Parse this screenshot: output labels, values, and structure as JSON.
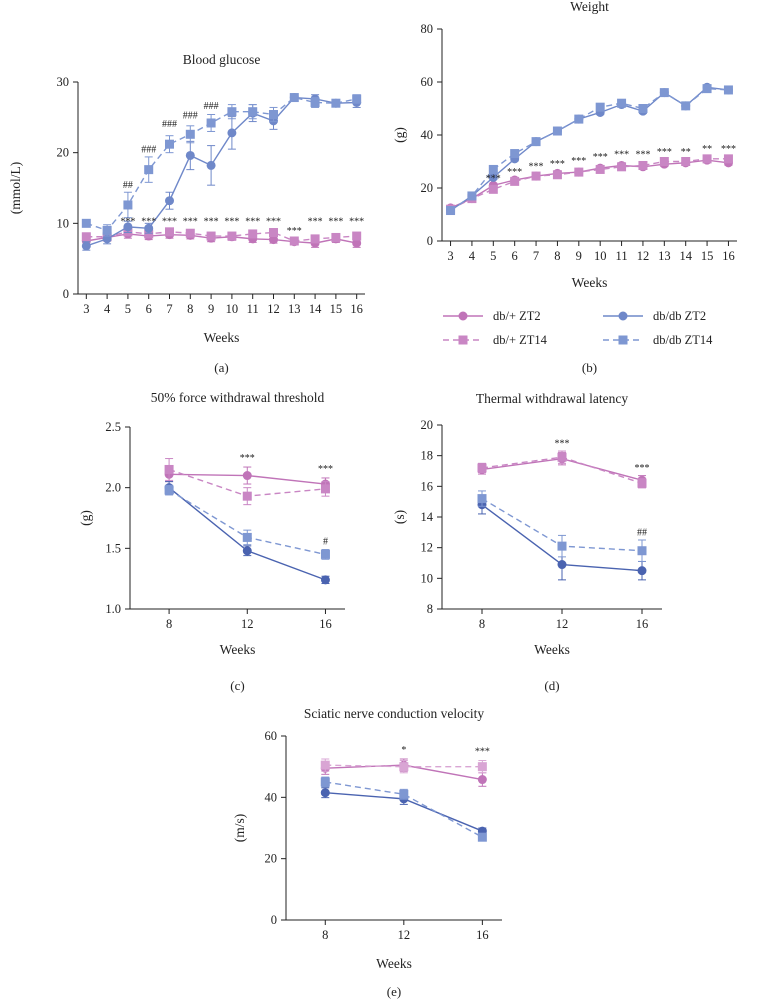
{
  "colors": {
    "dbplus_zt2": "#c074b8",
    "dbplus_zt14": "#c986c4",
    "dbdb_zt2": "#6f88c9",
    "dbdb_zt14": "#7e97d2",
    "dbdb_dark": "#4a63b0",
    "dbplus_light": "#d9a5d4"
  },
  "legend": {
    "items": [
      {
        "label": "db/+ ZT2",
        "series": "dbplus_zt2",
        "dash": false,
        "marker": "circle"
      },
      {
        "label": "db/db ZT2",
        "series": "dbdb_zt2",
        "dash": false,
        "marker": "circle"
      },
      {
        "label": "db/+ ZT14",
        "series": "dbplus_zt14",
        "dash": true,
        "marker": "square"
      },
      {
        "label": "db/db ZT14",
        "series": "dbdb_zt14",
        "dash": true,
        "marker": "square"
      }
    ]
  },
  "chart_data": [
    {
      "id": "a",
      "panel_label": "(a)",
      "type": "line",
      "title": "Blood glucose",
      "xlabel": "Weeks",
      "ylabel": "(mmol/L)",
      "x": [
        3,
        4,
        5,
        6,
        7,
        8,
        9,
        10,
        11,
        12,
        13,
        14,
        15,
        16
      ],
      "xticks": [
        "3",
        "4",
        "5",
        "6",
        "7",
        "8",
        "9",
        "10",
        "11",
        "12",
        "13",
        "14",
        "15",
        "16"
      ],
      "ylim": [
        0,
        30
      ],
      "yticks": [
        0,
        10,
        20,
        30
      ],
      "series": [
        {
          "name": "db/+ ZT2",
          "key": "dbplus_zt2",
          "dash": false,
          "marker": "circle",
          "values": [
            7.5,
            8.0,
            8.5,
            8.2,
            8.4,
            8.3,
            7.9,
            8.1,
            7.8,
            7.7,
            7.4,
            7.2,
            7.8,
            7.2
          ],
          "err": [
            0.6,
            0.5,
            0.6,
            0.5,
            0.5,
            0.5,
            0.5,
            0.5,
            0.5,
            0.5,
            0.4,
            0.6,
            0.5,
            0.6
          ]
        },
        {
          "name": "db/+ ZT14",
          "key": "dbplus_zt14",
          "dash": true,
          "marker": "square",
          "values": [
            8.1,
            8.1,
            8.8,
            8.5,
            8.8,
            8.6,
            8.2,
            8.2,
            8.5,
            8.7,
            7.5,
            7.8,
            8.0,
            8.2
          ],
          "err": [
            0.5,
            0.5,
            0.5,
            0.5,
            0.5,
            0.5,
            0.5,
            0.5,
            0.5,
            0.5,
            0.5,
            0.5,
            0.5,
            0.5
          ]
        },
        {
          "name": "db/db ZT2",
          "key": "dbdb_zt2",
          "dash": false,
          "marker": "circle",
          "values": [
            6.8,
            7.8,
            9.5,
            9.3,
            13.2,
            19.6,
            18.2,
            22.8,
            25.6,
            24.5,
            27.8,
            27.6,
            27.0,
            27.1
          ],
          "err": [
            0.6,
            0.7,
            0.8,
            0.7,
            1.2,
            2.0,
            2.8,
            2.3,
            1.2,
            1.2,
            0.4,
            0.6,
            0.5,
            0.7
          ]
        },
        {
          "name": "db/db ZT14",
          "key": "dbdb_zt14",
          "dash": true,
          "marker": "square",
          "values": [
            10.0,
            9.0,
            12.6,
            17.6,
            21.2,
            22.6,
            24.2,
            25.8,
            25.8,
            25.4,
            27.8,
            27.1,
            27.0,
            27.6
          ],
          "err": [
            0.5,
            0.8,
            1.8,
            1.8,
            1.2,
            1.2,
            1.2,
            1.0,
            1.0,
            1.0,
            0.5,
            0.7,
            0.5,
            0.6
          ]
        }
      ],
      "annotations": [
        {
          "x": 5,
          "y": 9.8,
          "text": "***"
        },
        {
          "x": 6,
          "y": 9.8,
          "text": "***"
        },
        {
          "x": 7,
          "y": 9.8,
          "text": "***"
        },
        {
          "x": 8,
          "y": 9.8,
          "text": "***"
        },
        {
          "x": 9,
          "y": 9.8,
          "text": "***"
        },
        {
          "x": 10,
          "y": 9.8,
          "text": "***"
        },
        {
          "x": 11,
          "y": 9.8,
          "text": "***"
        },
        {
          "x": 12,
          "y": 9.8,
          "text": "***"
        },
        {
          "x": 13,
          "y": 8.5,
          "text": "***"
        },
        {
          "x": 14,
          "y": 9.8,
          "text": "***"
        },
        {
          "x": 15,
          "y": 9.8,
          "text": "***"
        },
        {
          "x": 16,
          "y": 9.8,
          "text": "***"
        },
        {
          "x": 5,
          "y": 15.0,
          "text": "##"
        },
        {
          "x": 6,
          "y": 20.0,
          "text": "###"
        },
        {
          "x": 7,
          "y": 23.6,
          "text": "###"
        },
        {
          "x": 8,
          "y": 24.8,
          "text": "###"
        },
        {
          "x": 9,
          "y": 26.2,
          "text": "###"
        }
      ]
    },
    {
      "id": "b",
      "panel_label": "(b)",
      "type": "line",
      "title": "Weight",
      "xlabel": "Weeks",
      "ylabel": "(g)",
      "x": [
        3,
        4,
        5,
        6,
        7,
        8,
        9,
        10,
        11,
        12,
        13,
        14,
        15,
        16
      ],
      "xticks": [
        "3",
        "4",
        "5",
        "6",
        "7",
        "8",
        "9",
        "10",
        "11",
        "12",
        "13",
        "14",
        "15",
        "16"
      ],
      "ylim": [
        0,
        80
      ],
      "yticks": [
        0,
        20,
        40,
        60,
        80
      ],
      "series": [
        {
          "name": "db/+ ZT2",
          "key": "dbplus_zt2",
          "dash": false,
          "marker": "circle",
          "values": [
            12.5,
            16.0,
            21.0,
            23.0,
            24.5,
            25.5,
            26.0,
            27.5,
            28.5,
            28.0,
            29.0,
            29.5,
            30.5,
            29.5
          ],
          "err": [
            0.6,
            0.6,
            0.8,
            0.8,
            0.8,
            0.8,
            0.8,
            0.9,
            0.9,
            0.9,
            0.9,
            0.9,
            0.9,
            0.9
          ]
        },
        {
          "name": "db/+ ZT14",
          "key": "dbplus_zt14",
          "dash": true,
          "marker": "square",
          "values": [
            12.0,
            16.0,
            19.5,
            22.5,
            24.5,
            25.0,
            26.0,
            27.0,
            28.0,
            28.5,
            30.0,
            30.0,
            31.0,
            31.0
          ],
          "err": [
            0.6,
            0.6,
            0.8,
            0.8,
            0.8,
            0.8,
            0.8,
            0.9,
            0.9,
            0.9,
            0.9,
            0.9,
            0.9,
            0.9
          ]
        },
        {
          "name": "db/db ZT2",
          "key": "dbdb_zt2",
          "dash": false,
          "marker": "circle",
          "values": [
            11.5,
            17.0,
            24.0,
            31.0,
            37.5,
            41.5,
            46.0,
            48.5,
            51.5,
            49.0,
            56.0,
            51.0,
            58.0,
            57.0
          ],
          "err": [
            0.6,
            0.7,
            0.8,
            0.8,
            0.8,
            0.8,
            0.8,
            0.8,
            0.8,
            0.8,
            0.8,
            0.8,
            0.8,
            0.8
          ]
        },
        {
          "name": "db/db ZT14",
          "key": "dbdb_zt14",
          "dash": true,
          "marker": "square",
          "values": [
            11.5,
            17.0,
            27.0,
            33.0,
            37.5,
            41.5,
            46.0,
            50.5,
            52.0,
            50.0,
            56.0,
            51.0,
            57.5,
            57.0
          ],
          "err": [
            0.6,
            0.7,
            0.8,
            0.8,
            0.8,
            0.8,
            0.8,
            0.8,
            0.8,
            0.8,
            0.8,
            0.8,
            0.8,
            0.8
          ]
        }
      ],
      "annotations": [
        {
          "x": 5,
          "y": 22.5,
          "text": "***"
        },
        {
          "x": 6,
          "y": 25.0,
          "text": "***"
        },
        {
          "x": 7,
          "y": 27.0,
          "text": "***"
        },
        {
          "x": 8,
          "y": 28.0,
          "text": "***"
        },
        {
          "x": 9,
          "y": 29.0,
          "text": "***"
        },
        {
          "x": 10,
          "y": 30.5,
          "text": "***"
        },
        {
          "x": 11,
          "y": 31.5,
          "text": "***"
        },
        {
          "x": 12,
          "y": 31.5,
          "text": "***"
        },
        {
          "x": 13,
          "y": 32.5,
          "text": "***"
        },
        {
          "x": 14,
          "y": 32.5,
          "text": "**"
        },
        {
          "x": 15,
          "y": 33.5,
          "text": "**"
        },
        {
          "x": 16,
          "y": 33.5,
          "text": "***"
        }
      ]
    },
    {
      "id": "c",
      "panel_label": "(c)",
      "type": "line",
      "title": "50% force withdrawal threshold",
      "xlabel": "Weeks",
      "ylabel": "(g)",
      "x": [
        8,
        12,
        16
      ],
      "xticks": [
        "8",
        "12",
        "16"
      ],
      "ylim": [
        1.0,
        2.5
      ],
      "yticks": [
        "1.0",
        "1.5",
        "2.0",
        "2.5"
      ],
      "series": [
        {
          "name": "db/+ ZT2",
          "key": "dbplus_zt2",
          "dash": false,
          "marker": "circle",
          "values": [
            2.11,
            2.1,
            2.03
          ],
          "err": [
            0.06,
            0.07,
            0.05
          ]
        },
        {
          "name": "db/+ ZT14",
          "key": "dbplus_zt14",
          "dash": true,
          "marker": "square",
          "values": [
            2.15,
            1.93,
            1.99
          ],
          "err": [
            0.09,
            0.07,
            0.06
          ]
        },
        {
          "name": "db/db ZT2",
          "key": "dbdb_dark",
          "dash": false,
          "marker": "circle",
          "values": [
            2.0,
            1.48,
            1.24
          ],
          "err": [
            0.05,
            0.04,
            0.03
          ]
        },
        {
          "name": "db/db ZT14",
          "key": "dbdb_zt14",
          "dash": true,
          "marker": "square",
          "values": [
            1.98,
            1.59,
            1.45
          ],
          "err": [
            0.04,
            0.06,
            0.04
          ]
        }
      ],
      "annotations": [
        {
          "x": 12,
          "y": 2.22,
          "text": "***"
        },
        {
          "x": 16,
          "y": 2.13,
          "text": "***"
        },
        {
          "x": 16,
          "y": 1.53,
          "text": "#"
        }
      ]
    },
    {
      "id": "d",
      "panel_label": "(d)",
      "type": "line",
      "title": "Thermal withdrawal latency",
      "xlabel": "Weeks",
      "ylabel": "(s)",
      "x": [
        8,
        12,
        16
      ],
      "xticks": [
        "8",
        "12",
        "16"
      ],
      "ylim": [
        8,
        20
      ],
      "yticks": [
        8,
        10,
        12,
        14,
        16,
        18,
        20
      ],
      "series": [
        {
          "name": "db/+ ZT2",
          "key": "dbplus_zt2",
          "dash": false,
          "marker": "circle",
          "values": [
            17.1,
            17.8,
            16.4
          ],
          "err": [
            0.3,
            0.4,
            0.3
          ]
        },
        {
          "name": "db/+ ZT14",
          "key": "dbplus_zt14",
          "dash": true,
          "marker": "square",
          "values": [
            17.2,
            17.9,
            16.2
          ],
          "err": [
            0.3,
            0.4,
            0.3
          ]
        },
        {
          "name": "db/db ZT2",
          "key": "dbdb_dark",
          "dash": false,
          "marker": "circle",
          "values": [
            14.8,
            10.9,
            10.5
          ],
          "err": [
            0.6,
            1.0,
            0.6
          ]
        },
        {
          "name": "db/db ZT14",
          "key": "dbdb_zt14",
          "dash": true,
          "marker": "square",
          "values": [
            15.2,
            12.1,
            11.8
          ],
          "err": [
            0.5,
            0.7,
            0.7
          ]
        }
      ],
      "annotations": [
        {
          "x": 12,
          "y": 18.6,
          "text": "***"
        },
        {
          "x": 16,
          "y": 17.0,
          "text": "***"
        },
        {
          "x": 16,
          "y": 12.8,
          "text": "##"
        }
      ]
    },
    {
      "id": "e",
      "panel_label": "(e)",
      "type": "line",
      "title": "Sciatic nerve conduction velocity",
      "xlabel": "Weeks",
      "ylabel": "(m/s)",
      "x": [
        8,
        12,
        16
      ],
      "xticks": [
        "8",
        "12",
        "16"
      ],
      "ylim": [
        0,
        60
      ],
      "yticks": [
        0,
        20,
        40,
        60
      ],
      "series": [
        {
          "name": "db/+ ZT2",
          "key": "dbplus_zt2",
          "dash": false,
          "marker": "circle",
          "values": [
            49.5,
            50.5,
            45.8
          ],
          "err": [
            2.0,
            2.0,
            2.2
          ]
        },
        {
          "name": "db/+ ZT14",
          "key": "dbplus_light",
          "dash": true,
          "marker": "square",
          "values": [
            50.5,
            50.0,
            50.0
          ],
          "err": [
            2.0,
            2.0,
            2.0
          ]
        },
        {
          "name": "db/db ZT2",
          "key": "dbdb_dark",
          "dash": false,
          "marker": "circle",
          "values": [
            41.5,
            39.5,
            29.0
          ],
          "err": [
            1.6,
            1.8,
            1.0
          ]
        },
        {
          "name": "db/db ZT14",
          "key": "dbdb_zt14",
          "dash": true,
          "marker": "square",
          "values": [
            45.0,
            41.0,
            27.0
          ],
          "err": [
            1.6,
            1.6,
            1.0
          ]
        }
      ],
      "annotations": [
        {
          "x": 12,
          "y": 54.5,
          "text": "*"
        },
        {
          "x": 16,
          "y": 54.0,
          "text": "***"
        }
      ]
    }
  ]
}
